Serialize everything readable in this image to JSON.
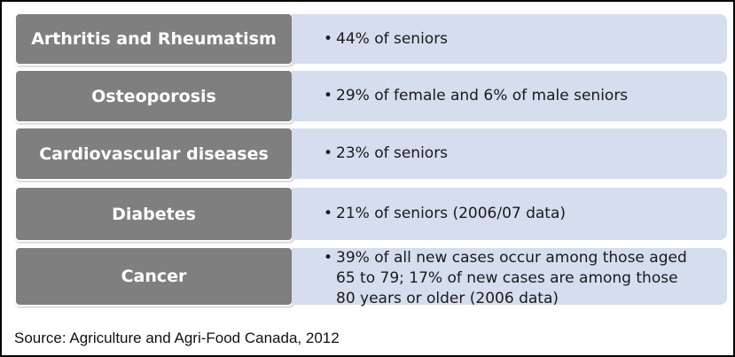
{
  "rows": [
    {
      "label": "Arthritis and Rheumatism",
      "text": "44% of seniors"
    },
    {
      "label": "Osteoporosis",
      "text": "29% of female and 6% of male seniors"
    },
    {
      "label": "Cardiovascular diseases",
      "text": "23% of seniors"
    },
    {
      "label": "Diabetes",
      "text": "21% of seniors (2006/07 data)"
    },
    {
      "label": "Cancer",
      "text": "39% of all new cases occur among those aged 65 to 79; 17% of new cases are among those 80 years or older (2006 data)"
    }
  ],
  "bullet": "•",
  "source": "Source: Agriculture and Agri-Food Canada, 2012"
}
